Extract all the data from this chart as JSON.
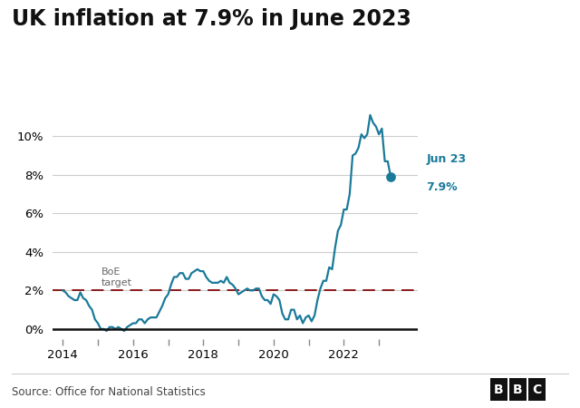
{
  "title": "UK inflation at 7.9% in June 2023",
  "title_fontsize": 17,
  "title_fontweight": "bold",
  "line_color": "#1a7a9a",
  "boe_line_color": "#8b1a1a",
  "boe_target": 2.0,
  "boe_label": "BoE\ntarget",
  "endpoint_label_line1": "Jun 23",
  "endpoint_label_line2": "7.9%",
  "endpoint_value": 7.9,
  "source_text": "Source: Office for National Statistics",
  "background_color": "#ffffff",
  "zero_line_color": "#111111",
  "yticks": [
    0,
    2,
    4,
    6,
    8,
    10
  ],
  "ylim": [
    -0.5,
    12.2
  ],
  "xtick_years": [
    2014,
    2016,
    2018,
    2020,
    2022
  ],
  "minor_tick_years": [
    2015,
    2017,
    2019,
    2021,
    2023
  ],
  "xlim_left": 2013.7,
  "xlim_right": 2024.1,
  "data": [
    [
      2014.0,
      2.0
    ],
    [
      2014.083,
      1.9
    ],
    [
      2014.167,
      1.7
    ],
    [
      2014.25,
      1.6
    ],
    [
      2014.333,
      1.5
    ],
    [
      2014.417,
      1.5
    ],
    [
      2014.5,
      1.9
    ],
    [
      2014.583,
      1.6
    ],
    [
      2014.667,
      1.5
    ],
    [
      2014.75,
      1.2
    ],
    [
      2014.833,
      1.0
    ],
    [
      2014.917,
      0.5
    ],
    [
      2015.0,
      0.3
    ],
    [
      2015.083,
      0.0
    ],
    [
      2015.167,
      0.0
    ],
    [
      2015.25,
      -0.1
    ],
    [
      2015.333,
      0.1
    ],
    [
      2015.417,
      0.1
    ],
    [
      2015.5,
      0.0
    ],
    [
      2015.583,
      0.1
    ],
    [
      2015.667,
      0.0
    ],
    [
      2015.75,
      -0.1
    ],
    [
      2015.833,
      0.1
    ],
    [
      2015.917,
      0.2
    ],
    [
      2016.0,
      0.3
    ],
    [
      2016.083,
      0.3
    ],
    [
      2016.167,
      0.5
    ],
    [
      2016.25,
      0.5
    ],
    [
      2016.333,
      0.3
    ],
    [
      2016.417,
      0.5
    ],
    [
      2016.5,
      0.6
    ],
    [
      2016.583,
      0.6
    ],
    [
      2016.667,
      0.6
    ],
    [
      2016.75,
      0.9
    ],
    [
      2016.833,
      1.2
    ],
    [
      2016.917,
      1.6
    ],
    [
      2017.0,
      1.8
    ],
    [
      2017.083,
      2.3
    ],
    [
      2017.167,
      2.7
    ],
    [
      2017.25,
      2.7
    ],
    [
      2017.333,
      2.9
    ],
    [
      2017.417,
      2.9
    ],
    [
      2017.5,
      2.6
    ],
    [
      2017.583,
      2.6
    ],
    [
      2017.667,
      2.9
    ],
    [
      2017.75,
      3.0
    ],
    [
      2017.833,
      3.1
    ],
    [
      2017.917,
      3.0
    ],
    [
      2018.0,
      3.0
    ],
    [
      2018.083,
      2.7
    ],
    [
      2018.167,
      2.5
    ],
    [
      2018.25,
      2.4
    ],
    [
      2018.333,
      2.4
    ],
    [
      2018.417,
      2.4
    ],
    [
      2018.5,
      2.5
    ],
    [
      2018.583,
      2.4
    ],
    [
      2018.667,
      2.7
    ],
    [
      2018.75,
      2.4
    ],
    [
      2018.833,
      2.3
    ],
    [
      2018.917,
      2.1
    ],
    [
      2019.0,
      1.8
    ],
    [
      2019.083,
      1.9
    ],
    [
      2019.167,
      2.0
    ],
    [
      2019.25,
      2.1
    ],
    [
      2019.333,
      2.0
    ],
    [
      2019.417,
      2.0
    ],
    [
      2019.5,
      2.1
    ],
    [
      2019.583,
      2.1
    ],
    [
      2019.667,
      1.7
    ],
    [
      2019.75,
      1.5
    ],
    [
      2019.833,
      1.5
    ],
    [
      2019.917,
      1.3
    ],
    [
      2020.0,
      1.8
    ],
    [
      2020.083,
      1.7
    ],
    [
      2020.167,
      1.5
    ],
    [
      2020.25,
      0.8
    ],
    [
      2020.333,
      0.5
    ],
    [
      2020.417,
      0.5
    ],
    [
      2020.5,
      1.0
    ],
    [
      2020.583,
      1.0
    ],
    [
      2020.667,
      0.5
    ],
    [
      2020.75,
      0.7
    ],
    [
      2020.833,
      0.3
    ],
    [
      2020.917,
      0.6
    ],
    [
      2021.0,
      0.7
    ],
    [
      2021.083,
      0.4
    ],
    [
      2021.167,
      0.7
    ],
    [
      2021.25,
      1.5
    ],
    [
      2021.333,
      2.1
    ],
    [
      2021.417,
      2.5
    ],
    [
      2021.5,
      2.5
    ],
    [
      2021.583,
      3.2
    ],
    [
      2021.667,
      3.1
    ],
    [
      2021.75,
      4.2
    ],
    [
      2021.833,
      5.1
    ],
    [
      2021.917,
      5.4
    ],
    [
      2022.0,
      6.2
    ],
    [
      2022.083,
      6.2
    ],
    [
      2022.167,
      7.0
    ],
    [
      2022.25,
      9.0
    ],
    [
      2022.333,
      9.1
    ],
    [
      2022.417,
      9.4
    ],
    [
      2022.5,
      10.1
    ],
    [
      2022.583,
      9.9
    ],
    [
      2022.667,
      10.1
    ],
    [
      2022.75,
      11.1
    ],
    [
      2022.833,
      10.7
    ],
    [
      2022.917,
      10.5
    ],
    [
      2023.0,
      10.1
    ],
    [
      2023.083,
      10.4
    ],
    [
      2023.167,
      8.7
    ],
    [
      2023.25,
      8.7
    ],
    [
      2023.333,
      7.9
    ]
  ]
}
